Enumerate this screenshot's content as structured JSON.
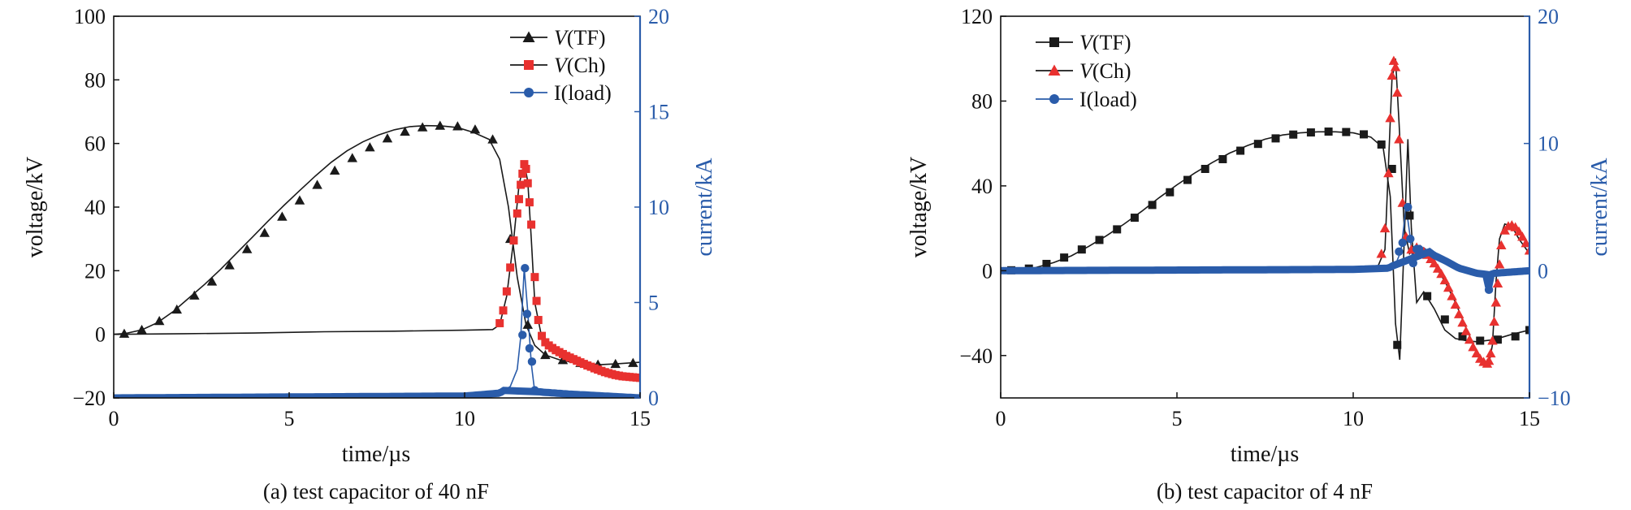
{
  "colors": {
    "tf": "#1a1a1a",
    "ch": "#e8312f",
    "load": "#2a5caa",
    "axis": "#111111",
    "right_axis": "#2a5caa"
  },
  "chart_data": [
    {
      "type": "line",
      "caption": "(a) test capacitor of 40 nF",
      "xlabel": "time/µs",
      "ylabel": "voltage/kV",
      "y2label": "current/kA",
      "xlim": [
        0,
        15
      ],
      "ylim": [
        -20,
        100
      ],
      "y2lim": [
        0,
        20
      ],
      "xticks": [
        "0",
        "5",
        "10",
        "15"
      ],
      "yticks": [
        "−20",
        "0",
        "20",
        "40",
        "60",
        "80",
        "100"
      ],
      "y2ticks": [
        "0",
        "5",
        "10",
        "15",
        "20"
      ],
      "legend_position": "top-right",
      "series": [
        {
          "name": "V(TF)",
          "marker": "triangle",
          "x": [
            0.0,
            0.35,
            0.8,
            1.25,
            1.7,
            2.15,
            2.6,
            3.05,
            3.5,
            3.95,
            4.4,
            4.85,
            5.3,
            5.75,
            6.2,
            6.65,
            7.1,
            7.55,
            8.0,
            8.45,
            8.9,
            9.35,
            9.8,
            10.25,
            10.7,
            11.0,
            11.25,
            11.5,
            11.75,
            12.0,
            12.3,
            12.7,
            13.1,
            13.5,
            13.9,
            14.3,
            14.7,
            15.0
          ],
          "y": [
            0,
            0.3,
            1.4,
            3.7,
            7.2,
            11.5,
            15.8,
            20.5,
            25.5,
            30.5,
            35.6,
            40.5,
            45.2,
            49.8,
            54.1,
            57.7,
            60.5,
            62.7,
            64.3,
            65.3,
            65.6,
            65.5,
            65.0,
            63.5,
            61.3,
            55.0,
            40.0,
            18.0,
            3.0,
            -3.5,
            -6.5,
            -8.0,
            -8.9,
            -9.4,
            -9.5,
            -9.3,
            -9.0,
            -8.8
          ],
          "marker_x": [
            0.3,
            0.8,
            1.3,
            1.8,
            2.3,
            2.8,
            3.3,
            3.8,
            4.3,
            4.8,
            5.3,
            5.8,
            6.3,
            6.8,
            7.3,
            7.8,
            8.3,
            8.8,
            9.3,
            9.8,
            10.3,
            10.8,
            11.3,
            11.8,
            12.3,
            12.8,
            13.3,
            13.8,
            14.3,
            14.8
          ],
          "marker_y": [
            0.2,
            1.4,
            4.2,
            7.8,
            12.2,
            16.6,
            21.7,
            26.8,
            31.9,
            37.0,
            42.1,
            47.0,
            51.5,
            55.4,
            58.8,
            61.6,
            63.7,
            65.1,
            65.6,
            65.4,
            64.4,
            61.3,
            30.0,
            3.0,
            -6.5,
            -8.1,
            -9.0,
            -9.5,
            -9.3,
            -9.0
          ]
        },
        {
          "name": "V(Ch)",
          "marker": "square",
          "x": [
            0,
            2,
            4,
            6,
            8,
            10,
            10.8,
            11.0,
            11.2,
            11.4,
            11.55,
            11.7,
            11.8,
            11.9,
            12.0,
            12.2,
            12.5,
            13.0,
            13.5,
            14.0,
            14.5,
            15.0
          ],
          "y": [
            0,
            0.2,
            0.4,
            0.8,
            1.0,
            1.3,
            1.5,
            3.0,
            12.0,
            30.0,
            47.0,
            54.0,
            48.0,
            30.0,
            10.0,
            -1.0,
            -4.0,
            -7.0,
            -9.5,
            -11.5,
            -12.8,
            -13.5
          ],
          "marker_x": [
            11.0,
            11.1,
            11.2,
            11.3,
            11.4,
            11.5,
            11.55,
            11.6,
            11.65,
            11.7,
            11.75,
            11.8,
            11.85,
            11.9,
            12.0,
            12.05,
            12.1,
            12.2,
            12.3,
            12.4,
            12.5,
            12.6,
            12.7,
            12.8,
            12.9,
            13.0,
            13.1,
            13.2,
            13.3,
            13.4,
            13.5,
            13.6,
            13.7,
            13.8,
            13.9,
            14.0,
            14.1,
            14.2,
            14.3,
            14.4,
            14.5,
            14.6,
            14.7,
            14.8,
            14.9,
            15.0
          ],
          "marker_y": [
            3.5,
            7.5,
            13.5,
            21.0,
            29.5,
            38.0,
            42.5,
            47.0,
            50.5,
            53.5,
            52.0,
            47.5,
            41.5,
            34.5,
            18.0,
            10.5,
            4.5,
            -0.5,
            -2.5,
            -3.5,
            -4.3,
            -5.0,
            -5.6,
            -6.2,
            -6.8,
            -7.3,
            -7.8,
            -8.3,
            -8.8,
            -9.3,
            -9.8,
            -10.2,
            -10.7,
            -11.1,
            -11.5,
            -11.9,
            -12.2,
            -12.5,
            -12.8,
            -13.0,
            -13.2,
            -13.3,
            -13.4,
            -13.5,
            -13.6,
            -13.7
          ]
        },
        {
          "name": "I(load)",
          "marker": "circle",
          "axis": "right",
          "x": [
            0,
            5,
            10,
            11.0,
            11.3,
            11.5,
            11.6,
            11.7,
            11.8,
            11.9,
            12.0,
            12.1,
            12.2,
            12.4,
            13.0,
            14.0,
            15.0
          ],
          "y": [
            0,
            0.05,
            0.1,
            0.25,
            0.6,
            1.5,
            3.2,
            6.8,
            4.5,
            1.8,
            0.3,
            0.35,
            0.3,
            0.28,
            0.2,
            0.1,
            0.0
          ],
          "marker_x": [
            11.65,
            11.72,
            11.78,
            11.85,
            11.92,
            12.0
          ],
          "marker_y": [
            3.3,
            6.8,
            4.4,
            2.6,
            1.9,
            0.4
          ]
        }
      ]
    },
    {
      "type": "line",
      "caption": "(b) test capacitor of 4 nF",
      "xlabel": "time/µs",
      "ylabel": "voltage/kV",
      "y2label": "current/kA",
      "xlim": [
        0,
        15
      ],
      "ylim": [
        -60,
        120
      ],
      "y2lim": [
        -10,
        20
      ],
      "xticks": [
        "0",
        "5",
        "10",
        "15"
      ],
      "yticks": [
        "−40",
        "0",
        "40",
        "80",
        "120"
      ],
      "y2ticks": [
        "−10",
        "0",
        "10",
        "20"
      ],
      "legend_position": "top-left",
      "series": [
        {
          "name": "V(TF)",
          "marker": "square",
          "x": [
            0.0,
            0.5,
            1.0,
            1.5,
            2.0,
            2.5,
            3.0,
            3.5,
            4.0,
            4.5,
            5.0,
            5.5,
            6.0,
            6.5,
            7.0,
            7.5,
            8.0,
            8.5,
            9.0,
            9.5,
            10.0,
            10.5,
            10.85,
            11.05,
            11.2,
            11.32,
            11.45,
            11.55,
            11.65,
            11.8,
            12.0,
            12.3,
            12.6,
            12.9,
            13.2,
            13.5,
            14.0,
            14.5,
            15.0
          ],
          "y": [
            0,
            0.3,
            1.5,
            3.8,
            7.0,
            11.5,
            16.5,
            22.0,
            28.0,
            34.5,
            40.5,
            46.0,
            51.0,
            55.5,
            59.0,
            62.0,
            64.0,
            65.0,
            65.5,
            65.5,
            65.0,
            63.0,
            58.0,
            35.0,
            -25.0,
            -42.0,
            15.0,
            62.0,
            20.0,
            -15.0,
            -10.0,
            -18.0,
            -28.0,
            -32.0,
            -33.0,
            -33.5,
            -32.5,
            -30.0,
            -28.0
          ],
          "marker_x": [
            0.3,
            0.8,
            1.3,
            1.8,
            2.3,
            2.8,
            3.3,
            3.8,
            4.3,
            4.8,
            5.3,
            5.8,
            6.3,
            6.8,
            7.3,
            7.8,
            8.3,
            8.8,
            9.3,
            9.8,
            10.3,
            10.8,
            11.1,
            11.25,
            11.6,
            12.1,
            12.6,
            13.1,
            13.6,
            14.1,
            14.6,
            15.0
          ],
          "marker_y": [
            0.2,
            1.0,
            3.2,
            6.2,
            10.0,
            14.5,
            19.5,
            25.0,
            31.0,
            37.0,
            42.8,
            48.0,
            52.6,
            56.6,
            59.8,
            62.4,
            64.2,
            65.2,
            65.6,
            65.4,
            64.3,
            59.5,
            48.0,
            -35.0,
            26.0,
            -12.0,
            -23.0,
            -31.0,
            -33.0,
            -32.5,
            -31.0,
            -28.0
          ]
        },
        {
          "name": "V(Ch)",
          "marker": "triangle",
          "x": [
            0,
            2,
            4,
            6,
            8,
            10,
            10.7,
            10.9,
            11.0,
            11.1,
            11.2,
            11.3,
            11.45,
            11.6,
            11.75,
            12.0,
            12.3,
            12.6,
            12.9,
            13.2,
            13.5,
            13.7,
            13.85,
            13.95,
            14.05,
            14.15,
            14.3,
            14.5,
            14.7,
            15.0
          ],
          "y": [
            0,
            0.5,
            0.8,
            1.0,
            1.2,
            1.5,
            2.0,
            10.0,
            50.0,
            90.0,
            100.0,
            70.0,
            20.0,
            8.0,
            11.0,
            8.0,
            3.0,
            -5.0,
            -15.0,
            -27.0,
            -38.0,
            -43.0,
            -44.0,
            -35.0,
            -5.0,
            15.0,
            22.0,
            21.0,
            15.0,
            8.0
          ],
          "marker_x": [
            10.8,
            10.9,
            11.0,
            11.05,
            11.1,
            11.15,
            11.2,
            11.25,
            11.3,
            11.4,
            11.5,
            11.65,
            11.8,
            11.9,
            12.0,
            12.1,
            12.2,
            12.3,
            12.4,
            12.5,
            12.6,
            12.7,
            12.8,
            12.9,
            13.0,
            13.1,
            13.2,
            13.3,
            13.4,
            13.5,
            13.6,
            13.7,
            13.8,
            13.85,
            13.9,
            13.95,
            14.0,
            14.05,
            14.1,
            14.15,
            14.2,
            14.3,
            14.4,
            14.5,
            14.6,
            14.7,
            14.8,
            14.9,
            15.0
          ],
          "marker_y": [
            8.0,
            20.0,
            46.0,
            72.0,
            92.0,
            99.0,
            96.0,
            84.0,
            62.0,
            32.0,
            16.0,
            10.0,
            11.0,
            10.0,
            9.0,
            7.5,
            5.5,
            3.5,
            1.0,
            -1.5,
            -4.5,
            -8.0,
            -12.0,
            -16.0,
            -20.5,
            -24.5,
            -28.5,
            -32.5,
            -36.0,
            -39.0,
            -41.5,
            -43.0,
            -43.8,
            -42.5,
            -39.0,
            -33.0,
            -24.0,
            -15.0,
            -6.0,
            3.0,
            12.0,
            19.0,
            21.0,
            21.5,
            20.5,
            18.5,
            16.0,
            13.0,
            9.5
          ]
        },
        {
          "name": "I(load)",
          "marker": "circle",
          "axis": "right",
          "x": [
            0,
            5,
            10,
            11.0,
            11.2,
            11.35,
            11.5,
            11.6,
            11.7,
            11.85,
            12.0,
            12.3,
            12.6,
            13.0,
            13.5,
            13.8,
            13.85,
            13.9,
            14.0,
            14.5,
            15.0
          ],
          "y": [
            0,
            0.05,
            0.1,
            0.2,
            0.5,
            1.5,
            5.0,
            3.0,
            0.5,
            1.8,
            1.8,
            1.2,
            0.8,
            0.2,
            -0.2,
            -0.3,
            -1.5,
            -0.3,
            -0.2,
            -0.1,
            0.0
          ],
          "marker_x": [
            11.3,
            11.4,
            11.55,
            11.62,
            11.7,
            11.8,
            11.87,
            13.85
          ],
          "marker_y": [
            1.5,
            2.2,
            5.0,
            2.5,
            0.6,
            1.7,
            1.7,
            -1.5
          ]
        }
      ]
    }
  ]
}
